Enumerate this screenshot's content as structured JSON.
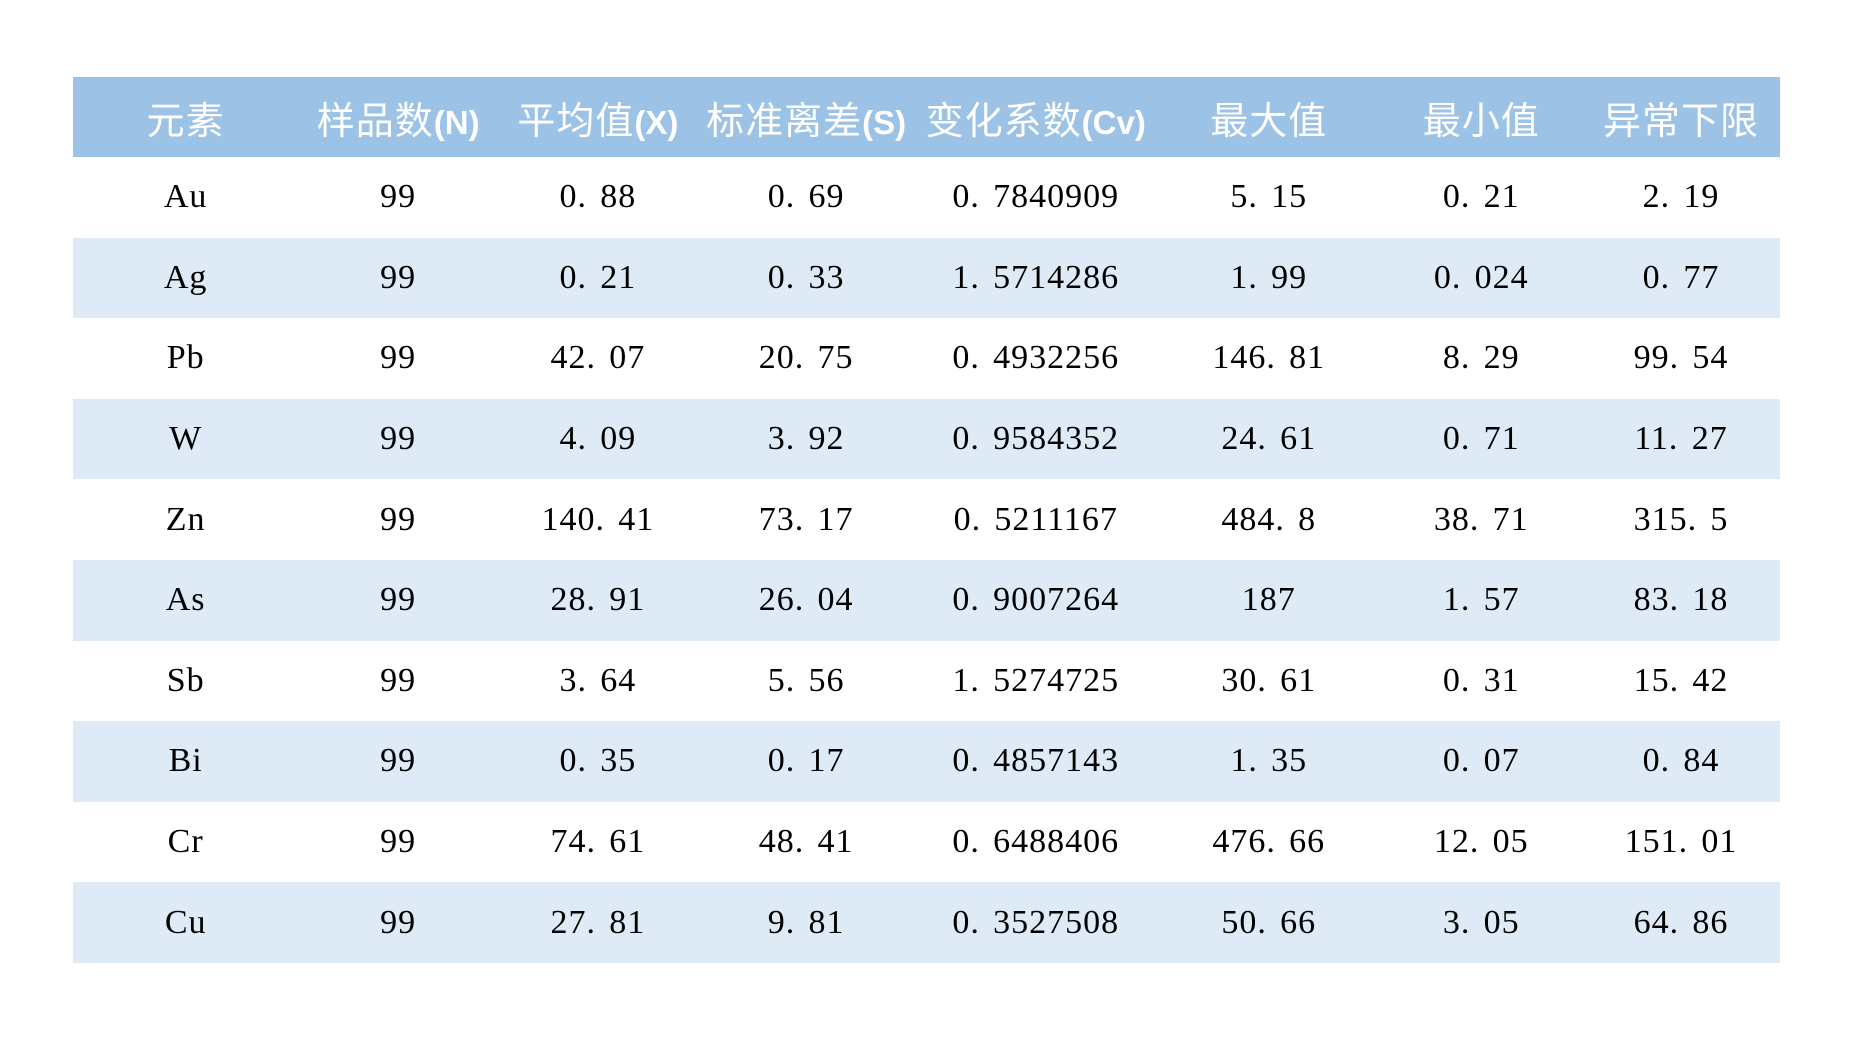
{
  "page": {
    "background": "#FFFFFF"
  },
  "table": {
    "header_bg": "#9CC2E5",
    "header_text_color": "#FFFFFF",
    "stripe_bg": "#DEEBF6",
    "row_bg": "#FFFFFF",
    "text_color": "#000000",
    "columns": [
      {
        "zh": "元素",
        "suffix": ""
      },
      {
        "zh": "样品数",
        "suffix": "(N)"
      },
      {
        "zh": "平均值",
        "suffix": "(X)"
      },
      {
        "zh": "标准离差",
        "suffix": "(S)"
      },
      {
        "zh": "变化系数",
        "suffix": "(Cv)"
      },
      {
        "zh": "最大值",
        "suffix": ""
      },
      {
        "zh": "最小值",
        "suffix": ""
      },
      {
        "zh": "异常下限",
        "suffix": ""
      }
    ]
  },
  "chart_data": {
    "type": "table",
    "columns": [
      "元素",
      "样品数(N)",
      "平均值(X)",
      "标准离差(S)",
      "变化系数(Cv)",
      "最大值",
      "最小值",
      "异常下限"
    ],
    "rows": [
      [
        "Au",
        "99",
        "0.88",
        "0.69",
        "0.7840909",
        "5.15",
        "0.21",
        "2.19"
      ],
      [
        "Ag",
        "99",
        "0.21",
        "0.33",
        "1.5714286",
        "1.99",
        "0.024",
        "0.77"
      ],
      [
        "Pb",
        "99",
        "42.07",
        "20.75",
        "0.4932256",
        "146.81",
        "8.29",
        "99.54"
      ],
      [
        "W",
        "99",
        "4.09",
        "3.92",
        "0.9584352",
        "24.61",
        "0.71",
        "11.27"
      ],
      [
        "Zn",
        "99",
        "140.41",
        "73.17",
        "0.5211167",
        "484.8",
        "38.71",
        "315.5"
      ],
      [
        "As",
        "99",
        "28.91",
        "26.04",
        "0.9007264",
        "187",
        "1.57",
        "83.18"
      ],
      [
        "Sb",
        "99",
        "3.64",
        "5.56",
        "1.5274725",
        "30.61",
        "0.31",
        "15.42"
      ],
      [
        "Bi",
        "99",
        "0.35",
        "0.17",
        "0.4857143",
        "1.35",
        "0.07",
        "0.84"
      ],
      [
        "Cr",
        "99",
        "74.61",
        "48.41",
        "0.6488406",
        "476.66",
        "12.05",
        "151.01"
      ],
      [
        "Cu",
        "99",
        "27.81",
        "9.81",
        "0.3527508",
        "50.66",
        "3.05",
        "64.86"
      ]
    ]
  }
}
